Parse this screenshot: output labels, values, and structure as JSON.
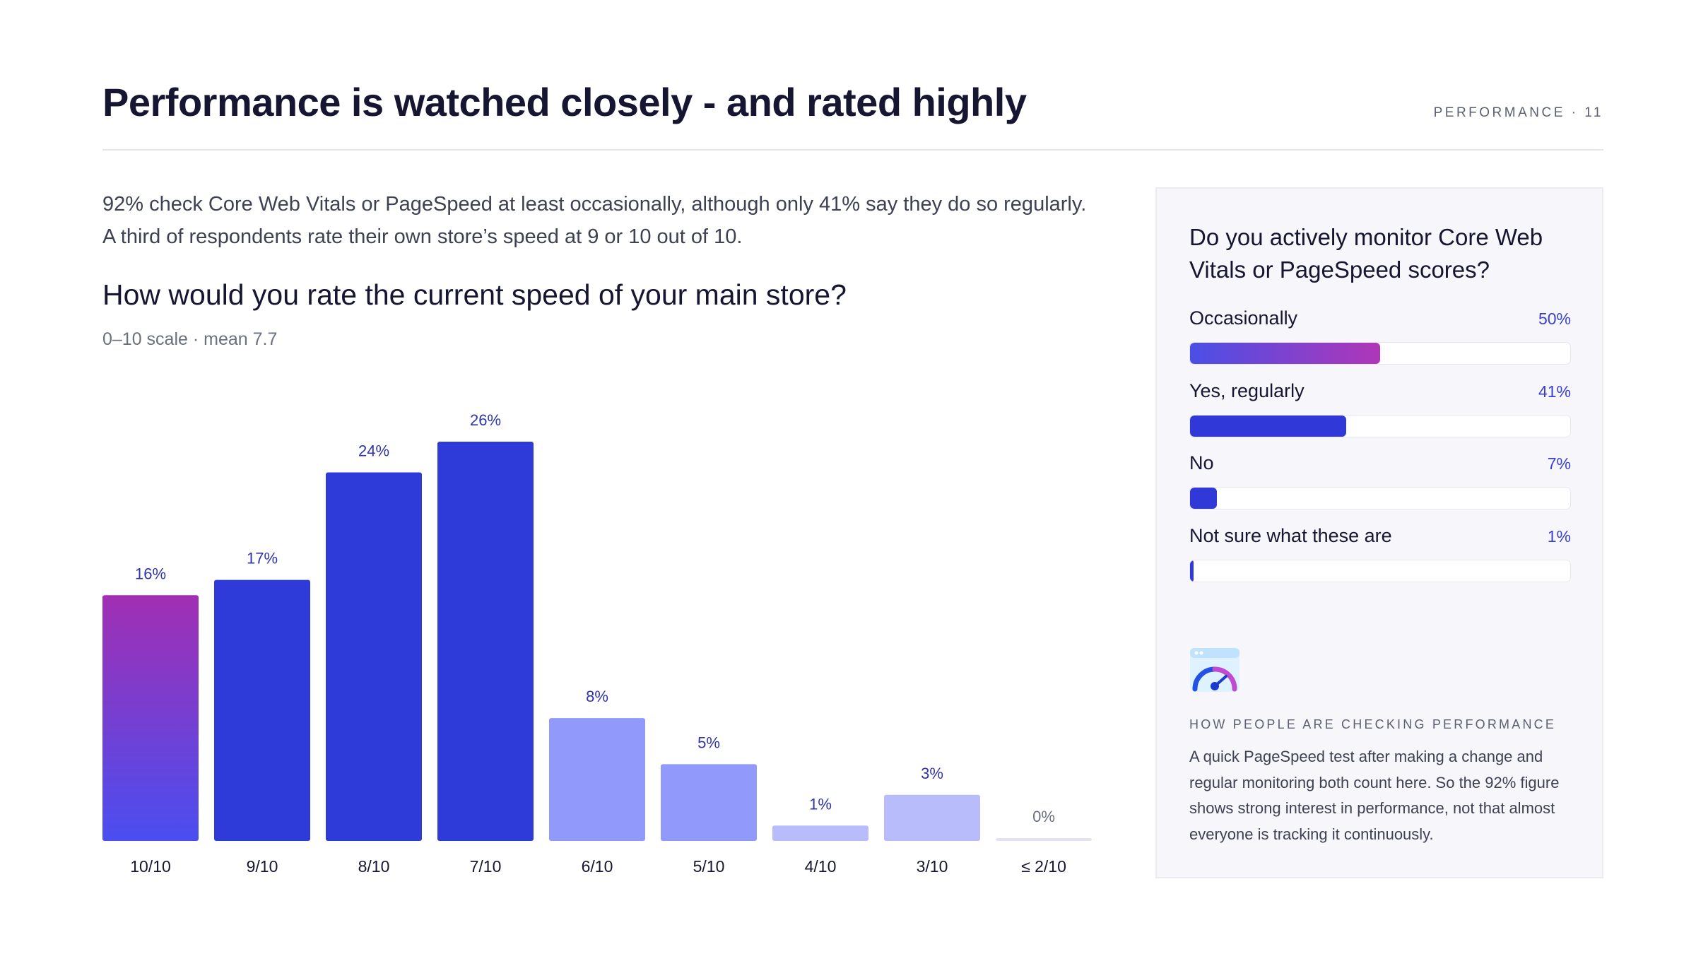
{
  "header": {
    "title": "Performance is watched closely - and rated highly",
    "page_tag": "PERFORMANCE · 11"
  },
  "intro": "92% check Core Web Vitals or PageSpeed at least occasionally, although only 41% say they do so regularly. A third of respondents rate their own store’s speed at 9 or 10 out of 10.",
  "chart_data": [
    {
      "type": "bar",
      "title": "How would you rate the current speed of your main store?",
      "subtitle": "0–10 scale · mean 7.7",
      "categories": [
        "10/10",
        "9/10",
        "8/10",
        "7/10",
        "6/10",
        "5/10",
        "4/10",
        "3/10",
        "≤ 2/10"
      ],
      "values": [
        16,
        17,
        24,
        26,
        8,
        5,
        1,
        3,
        0
      ],
      "value_labels": [
        "16%",
        "17%",
        "24%",
        "26%",
        "8%",
        "5%",
        "1%",
        "3%",
        "0%"
      ],
      "unit": "%",
      "ylim": [
        0,
        26
      ],
      "grid": false,
      "colors": {
        "top_box": [
          "#a12fb3",
          "#4a4ef0"
        ],
        "high": "#2f3bd9",
        "mid": "#9199fb",
        "low": "#b8bcfb",
        "zero": "#e2e3ee",
        "value_label": "#2f35a8",
        "category_label": "#161632"
      }
    },
    {
      "type": "bar",
      "orientation": "horizontal",
      "title": "Do you actively monitor Core Web Vitals or PageSpeed scores?",
      "categories": [
        "Occasionally",
        "Yes, regularly",
        "No",
        "Not sure what these are"
      ],
      "values": [
        50,
        41,
        7,
        1
      ],
      "value_labels": [
        "50%",
        "41%",
        "7%",
        "1%"
      ],
      "unit": "%",
      "xlim": [
        0,
        100
      ]
    }
  ],
  "panel": {
    "icon": "speed-gauge-icon",
    "kicker": "HOW PEOPLE ARE CHECKING PERFORMANCE",
    "body": "A quick PageSpeed test after making a change and regular monitoring both count here. So the 92% figure shows strong interest in performance, not that almost everyone is tracking it continuously."
  }
}
